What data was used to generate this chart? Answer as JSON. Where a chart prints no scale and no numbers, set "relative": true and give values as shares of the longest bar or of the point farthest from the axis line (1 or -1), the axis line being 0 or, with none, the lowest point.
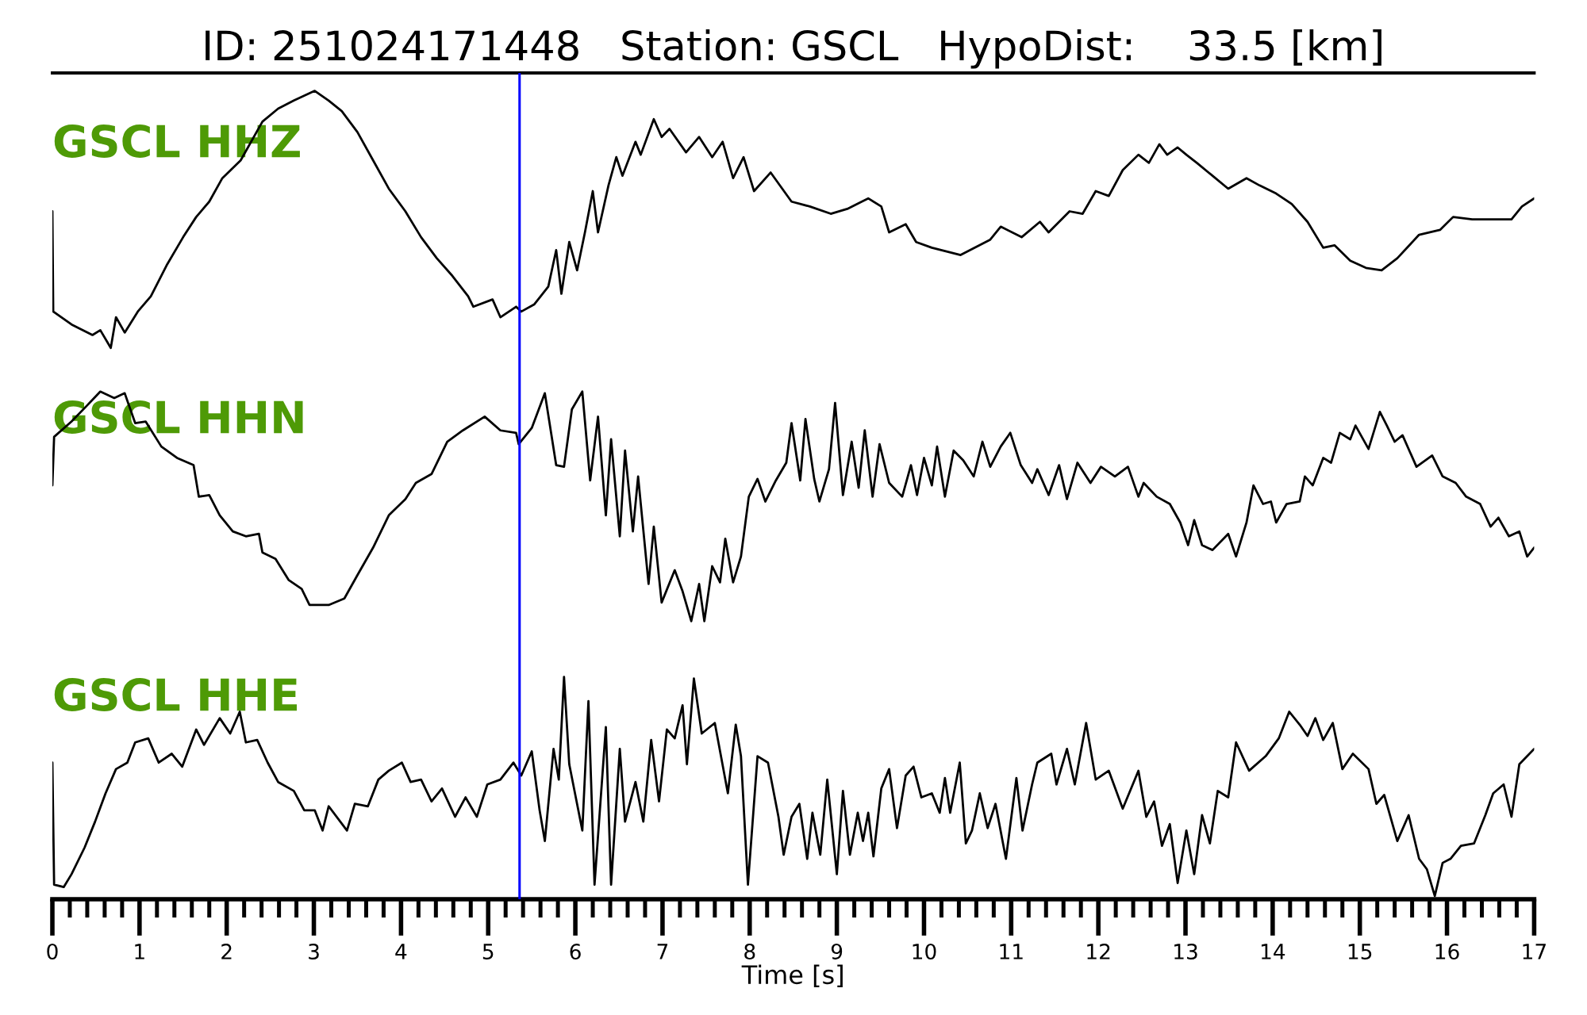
{
  "chart_data": {
    "type": "line",
    "title": "ID: 251024171448   Station: GSCL   HypoDist:    33.5 [km]",
    "xlabel": "Time [s]",
    "relative": true,
    "xlim": [
      0,
      17
    ],
    "xticks": [
      0,
      {
        "value": 0.2,
        "label": null
      },
      {
        "value": 0.4,
        "label": null
      },
      {
        "value": 0.6,
        "label": null
      },
      {
        "value": 0.8,
        "label": null
      },
      1,
      {
        "value": 1.2,
        "label": null
      },
      {
        "value": 1.4,
        "label": null
      },
      {
        "value": 1.6,
        "label": null
      },
      {
        "value": 1.8,
        "label": null
      },
      2,
      {
        "value": 2.2,
        "label": null
      },
      {
        "value": 2.4,
        "label": null
      },
      {
        "value": 2.6,
        "label": null
      },
      {
        "value": 2.8,
        "label": null
      },
      3,
      {
        "value": 3.2,
        "label": null
      },
      {
        "value": 3.4,
        "label": null
      },
      {
        "value": 3.6,
        "label": null
      },
      {
        "value": 3.8,
        "label": null
      },
      4,
      {
        "value": 4.2,
        "label": null
      },
      {
        "value": 4.4,
        "label": null
      },
      {
        "value": 4.6,
        "label": null
      },
      {
        "value": 4.8,
        "label": null
      },
      5,
      {
        "value": 5.2,
        "label": null
      },
      {
        "value": 5.4,
        "label": null
      },
      {
        "value": 5.6,
        "label": null
      },
      {
        "value": 5.8,
        "label": null
      },
      6,
      {
        "value": 6.2,
        "label": null
      },
      {
        "value": 6.4,
        "label": null
      },
      {
        "value": 6.6,
        "label": null
      },
      {
        "value": 6.8,
        "label": null
      },
      7,
      {
        "value": 7.2,
        "label": null
      },
      {
        "value": 7.4,
        "label": null
      },
      {
        "value": 7.6,
        "label": null
      },
      {
        "value": 7.8,
        "label": null
      },
      8,
      {
        "value": 8.2,
        "label": null
      },
      {
        "value": 8.4,
        "label": null
      },
      {
        "value": 8.6,
        "label": null
      },
      {
        "value": 8.8,
        "label": null
      },
      9,
      {
        "value": 9.2,
        "label": null
      },
      {
        "value": 9.4,
        "label": null
      },
      {
        "value": 9.6,
        "label": null
      },
      {
        "value": 9.8,
        "label": null
      },
      10,
      {
        "value": 10.2,
        "label": null
      },
      {
        "value": 10.4,
        "label": null
      },
      {
        "value": 10.6,
        "label": null
      },
      {
        "value": 10.8,
        "label": null
      },
      11,
      {
        "value": 11.2,
        "label": null
      },
      {
        "value": 11.4,
        "label": null
      },
      {
        "value": 11.6,
        "label": null
      },
      {
        "value": 11.8,
        "label": null
      },
      12,
      {
        "value": 12.2,
        "label": null
      },
      {
        "value": 12.4,
        "label": null
      },
      {
        "value": 12.6,
        "label": null
      },
      {
        "value": 12.8,
        "label": null
      },
      13,
      {
        "value": 13.2,
        "label": null
      },
      {
        "value": 13.4,
        "label": null
      },
      {
        "value": 13.6,
        "label": null
      },
      {
        "value": 13.8,
        "label": null
      },
      14,
      {
        "value": 14.2,
        "label": null
      },
      {
        "value": 14.4,
        "label": null
      },
      {
        "value": 14.6,
        "label": null
      },
      {
        "value": 14.8,
        "label": null
      },
      15,
      {
        "value": 15.2,
        "label": null
      },
      {
        "value": 15.4,
        "label": null
      },
      {
        "value": 15.6,
        "label": null
      },
      {
        "value": 15.8,
        "label": null
      },
      16,
      {
        "value": 16.2,
        "label": null
      },
      {
        "value": 16.4,
        "label": null
      },
      {
        "value": 16.6,
        "label": null
      },
      {
        "value": 16.8,
        "label": null
      },
      17
    ],
    "ref_lines": [
      {
        "axis": "x",
        "value": 5.36,
        "color": "#0000ff"
      }
    ],
    "series": [
      {
        "name": "GSCL HHZ",
        "color": "#000000",
        "x": [
          0,
          0.01,
          0.22,
          0.46,
          0.55,
          0.67,
          0.73,
          0.83,
          0.98,
          1.13,
          1.31,
          1.5,
          1.65,
          1.8,
          1.95,
          2.16,
          2.41,
          2.59,
          2.77,
          3.01,
          3.17,
          3.32,
          3.5,
          3.68,
          3.86,
          4.05,
          4.23,
          4.41,
          4.59,
          4.77,
          4.83,
          5.05,
          5.14,
          5.32,
          5.38,
          5.53,
          5.69,
          5.78,
          5.84,
          5.93,
          6.02,
          6.11,
          6.2,
          6.26,
          6.38,
          6.47,
          6.54,
          6.69,
          6.75,
          6.9,
          6.99,
          7.08,
          7.27,
          7.42,
          7.57,
          7.69,
          7.81,
          7.93,
          8.05,
          8.24,
          8.48,
          8.69,
          8.93,
          9.12,
          9.36,
          9.51,
          9.6,
          9.79,
          9.91,
          10.09,
          10.42,
          10.76,
          10.88,
          11.12,
          11.33,
          11.43,
          11.67,
          11.82,
          11.97,
          12.12,
          12.28,
          12.46,
          12.58,
          12.7,
          12.79,
          12.91,
          13.01,
          13.13,
          13.31,
          13.49,
          13.7,
          13.85,
          14.04,
          14.22,
          14.4,
          14.58,
          14.71,
          14.89,
          15.07,
          15.25,
          15.43,
          15.68,
          15.92,
          16.07,
          16.29,
          16.53,
          16.74,
          16.86,
          17.0
        ],
        "values": [
          0.851,
          0.727,
          0.711,
          0.698,
          0.704,
          0.682,
          0.72,
          0.701,
          0.727,
          0.746,
          0.784,
          0.819,
          0.844,
          0.863,
          0.892,
          0.914,
          0.962,
          0.978,
          0.988,
          1.0,
          0.988,
          0.975,
          0.949,
          0.914,
          0.879,
          0.851,
          0.819,
          0.793,
          0.771,
          0.746,
          0.733,
          0.742,
          0.72,
          0.733,
          0.727,
          0.736,
          0.758,
          0.803,
          0.749,
          0.813,
          0.778,
          0.825,
          0.876,
          0.825,
          0.883,
          0.918,
          0.895,
          0.937,
          0.921,
          0.965,
          0.943,
          0.953,
          0.924,
          0.943,
          0.918,
          0.937,
          0.892,
          0.918,
          0.876,
          0.899,
          0.863,
          0.857,
          0.848,
          0.854,
          0.867,
          0.857,
          0.825,
          0.835,
          0.813,
          0.806,
          0.797,
          0.816,
          0.832,
          0.819,
          0.838,
          0.825,
          0.851,
          0.848,
          0.876,
          0.87,
          0.902,
          0.921,
          0.911,
          0.934,
          0.921,
          0.93,
          0.921,
          0.911,
          0.895,
          0.879,
          0.892,
          0.883,
          0.873,
          0.86,
          0.838,
          0.806,
          0.809,
          0.79,
          0.781,
          0.778,
          0.793,
          0.822,
          0.828,
          0.844,
          0.841,
          0.841,
          0.841,
          0.857,
          0.867
        ]
      },
      {
        "name": "GSCL HHN",
        "color": "#000000",
        "x": [
          0,
          0.02,
          0.22,
          0.4,
          0.55,
          0.71,
          0.83,
          0.95,
          1.07,
          1.25,
          1.43,
          1.62,
          1.68,
          1.8,
          1.92,
          2.07,
          2.22,
          2.37,
          2.41,
          2.56,
          2.71,
          2.86,
          2.95,
          3.17,
          3.35,
          3.5,
          3.68,
          3.86,
          4.05,
          4.17,
          4.35,
          4.53,
          4.71,
          4.96,
          5.14,
          5.32,
          5.35,
          5.5,
          5.65,
          5.78,
          5.87,
          5.96,
          6.08,
          6.17,
          6.26,
          6.35,
          6.41,
          6.51,
          6.57,
          6.66,
          6.72,
          6.84,
          6.9,
          6.99,
          7.14,
          7.23,
          7.33,
          7.42,
          7.48,
          7.57,
          7.66,
          7.72,
          7.81,
          7.9,
          7.99,
          8.09,
          8.18,
          8.3,
          8.42,
          8.48,
          8.58,
          8.64,
          8.74,
          8.8,
          8.91,
          8.98,
          9.07,
          9.17,
          9.25,
          9.32,
          9.41,
          9.49,
          9.6,
          9.75,
          9.85,
          9.92,
          10.0,
          10.09,
          10.15,
          10.24,
          10.34,
          10.45,
          10.57,
          10.67,
          10.76,
          10.88,
          10.99,
          11.11,
          11.24,
          11.3,
          11.43,
          11.55,
          11.64,
          11.76,
          11.91,
          12.03,
          12.19,
          12.34,
          12.46,
          12.52,
          12.67,
          12.82,
          12.94,
          13.03,
          13.1,
          13.19,
          13.31,
          13.49,
          13.58,
          13.7,
          13.78,
          13.89,
          13.98,
          14.04,
          14.16,
          14.31,
          14.37,
          14.46,
          14.58,
          14.67,
          14.77,
          14.89,
          14.95,
          15.1,
          15.23,
          15.31,
          15.4,
          15.49,
          15.65,
          15.83,
          15.95,
          16.1,
          16.22,
          16.38,
          16.5,
          16.59,
          16.71,
          16.83,
          16.92,
          17.0
        ],
        "values": [
          0.512,
          0.572,
          0.591,
          0.611,
          0.628,
          0.62,
          0.626,
          0.589,
          0.591,
          0.56,
          0.546,
          0.537,
          0.498,
          0.5,
          0.475,
          0.455,
          0.449,
          0.452,
          0.429,
          0.421,
          0.395,
          0.384,
          0.364,
          0.364,
          0.372,
          0.401,
          0.435,
          0.475,
          0.495,
          0.515,
          0.526,
          0.566,
          0.58,
          0.597,
          0.58,
          0.577,
          0.563,
          0.583,
          0.626,
          0.537,
          0.535,
          0.606,
          0.628,
          0.518,
          0.597,
          0.475,
          0.569,
          0.449,
          0.555,
          0.455,
          0.523,
          0.39,
          0.461,
          0.367,
          0.407,
          0.381,
          0.344,
          0.39,
          0.344,
          0.412,
          0.392,
          0.446,
          0.392,
          0.424,
          0.498,
          0.52,
          0.492,
          0.518,
          0.54,
          0.589,
          0.518,
          0.594,
          0.52,
          0.492,
          0.532,
          0.614,
          0.5,
          0.566,
          0.509,
          0.58,
          0.498,
          0.563,
          0.515,
          0.498,
          0.537,
          0.5,
          0.546,
          0.512,
          0.56,
          0.498,
          0.555,
          0.543,
          0.523,
          0.566,
          0.535,
          0.56,
          0.577,
          0.537,
          0.515,
          0.532,
          0.5,
          0.537,
          0.495,
          0.54,
          0.515,
          0.535,
          0.523,
          0.535,
          0.498,
          0.515,
          0.498,
          0.489,
          0.466,
          0.438,
          0.469,
          0.438,
          0.432,
          0.452,
          0.424,
          0.466,
          0.512,
          0.489,
          0.492,
          0.466,
          0.489,
          0.492,
          0.523,
          0.512,
          0.546,
          0.54,
          0.577,
          0.569,
          0.586,
          0.557,
          0.603,
          0.586,
          0.566,
          0.574,
          0.535,
          0.549,
          0.523,
          0.515,
          0.498,
          0.489,
          0.461,
          0.472,
          0.449,
          0.455,
          0.424,
          0.435
        ]
      },
      {
        "name": "GSCL HHE",
        "color": "#000000",
        "x": [
          0,
          0.02,
          0.13,
          0.22,
          0.37,
          0.49,
          0.61,
          0.73,
          0.86,
          0.95,
          1.1,
          1.22,
          1.37,
          1.49,
          1.65,
          1.74,
          1.92,
          2.04,
          2.15,
          2.22,
          2.35,
          2.47,
          2.59,
          2.77,
          2.89,
          3.01,
          3.1,
          3.17,
          3.38,
          3.47,
          3.62,
          3.74,
          3.86,
          4.01,
          4.11,
          4.23,
          4.35,
          4.47,
          4.62,
          4.74,
          4.87,
          4.99,
          5.14,
          5.29,
          5.38,
          5.5,
          5.59,
          5.65,
          5.75,
          5.81,
          5.87,
          5.93,
          6.08,
          6.15,
          6.22,
          6.35,
          6.41,
          6.51,
          6.57,
          6.69,
          6.78,
          6.87,
          6.96,
          7.05,
          7.14,
          7.23,
          7.28,
          7.36,
          7.45,
          7.6,
          7.75,
          7.84,
          7.9,
          7.98,
          8.09,
          8.21,
          8.33,
          8.39,
          8.48,
          8.57,
          8.66,
          8.72,
          8.81,
          8.89,
          9.0,
          9.07,
          9.15,
          9.24,
          9.3,
          9.36,
          9.42,
          9.51,
          9.6,
          9.69,
          9.79,
          9.88,
          9.97,
          10.09,
          10.18,
          10.24,
          10.3,
          10.41,
          10.48,
          10.55,
          10.64,
          10.73,
          10.82,
          10.94,
          11.06,
          11.13,
          11.24,
          11.3,
          11.46,
          11.52,
          11.64,
          11.73,
          11.86,
          11.97,
          12.12,
          12.28,
          12.46,
          12.55,
          12.64,
          12.73,
          12.82,
          12.91,
          13.01,
          13.1,
          13.19,
          13.28,
          13.37,
          13.49,
          13.58,
          13.73,
          13.92,
          14.07,
          14.19,
          14.31,
          14.4,
          14.49,
          14.58,
          14.69,
          14.8,
          14.92,
          15.1,
          15.19,
          15.28,
          15.43,
          15.56,
          15.68,
          15.77,
          15.86,
          15.95,
          16.04,
          16.16,
          16.31,
          16.44,
          16.53,
          16.65,
          16.74,
          16.83,
          16.92,
          17.0
        ],
        "values": [
          0.169,
          0.018,
          0.015,
          0.031,
          0.064,
          0.096,
          0.131,
          0.161,
          0.169,
          0.194,
          0.199,
          0.169,
          0.18,
          0.164,
          0.21,
          0.191,
          0.224,
          0.205,
          0.232,
          0.194,
          0.197,
          0.169,
          0.145,
          0.134,
          0.11,
          0.11,
          0.085,
          0.115,
          0.085,
          0.118,
          0.115,
          0.148,
          0.159,
          0.169,
          0.145,
          0.148,
          0.121,
          0.137,
          0.102,
          0.126,
          0.102,
          0.142,
          0.148,
          0.169,
          0.153,
          0.183,
          0.11,
          0.072,
          0.186,
          0.148,
          0.275,
          0.167,
          0.085,
          0.245,
          0.018,
          0.213,
          0.018,
          0.186,
          0.096,
          0.145,
          0.096,
          0.197,
          0.121,
          0.21,
          0.199,
          0.24,
          0.167,
          0.273,
          0.205,
          0.218,
          0.131,
          0.216,
          0.177,
          0.018,
          0.177,
          0.169,
          0.102,
          0.055,
          0.102,
          0.118,
          0.05,
          0.107,
          0.055,
          0.148,
          0.031,
          0.134,
          0.055,
          0.107,
          0.072,
          0.107,
          0.053,
          0.137,
          0.161,
          0.088,
          0.153,
          0.164,
          0.126,
          0.131,
          0.107,
          0.15,
          0.107,
          0.169,
          0.069,
          0.085,
          0.131,
          0.088,
          0.118,
          0.05,
          0.15,
          0.085,
          0.142,
          0.169,
          0.18,
          0.142,
          0.186,
          0.142,
          0.218,
          0.148,
          0.159,
          0.112,
          0.159,
          0.102,
          0.121,
          0.066,
          0.093,
          0.02,
          0.085,
          0.031,
          0.104,
          0.069,
          0.134,
          0.126,
          0.194,
          0.159,
          0.177,
          0.199,
          0.232,
          0.216,
          0.202,
          0.224,
          0.197,
          0.218,
          0.161,
          0.18,
          0.161,
          0.118,
          0.129,
          0.072,
          0.104,
          0.05,
          0.037,
          0.004,
          0.045,
          0.05,
          0.066,
          0.069,
          0.104,
          0.131,
          0.142,
          0.102,
          0.167,
          0.177,
          0.186
        ]
      }
    ]
  }
}
